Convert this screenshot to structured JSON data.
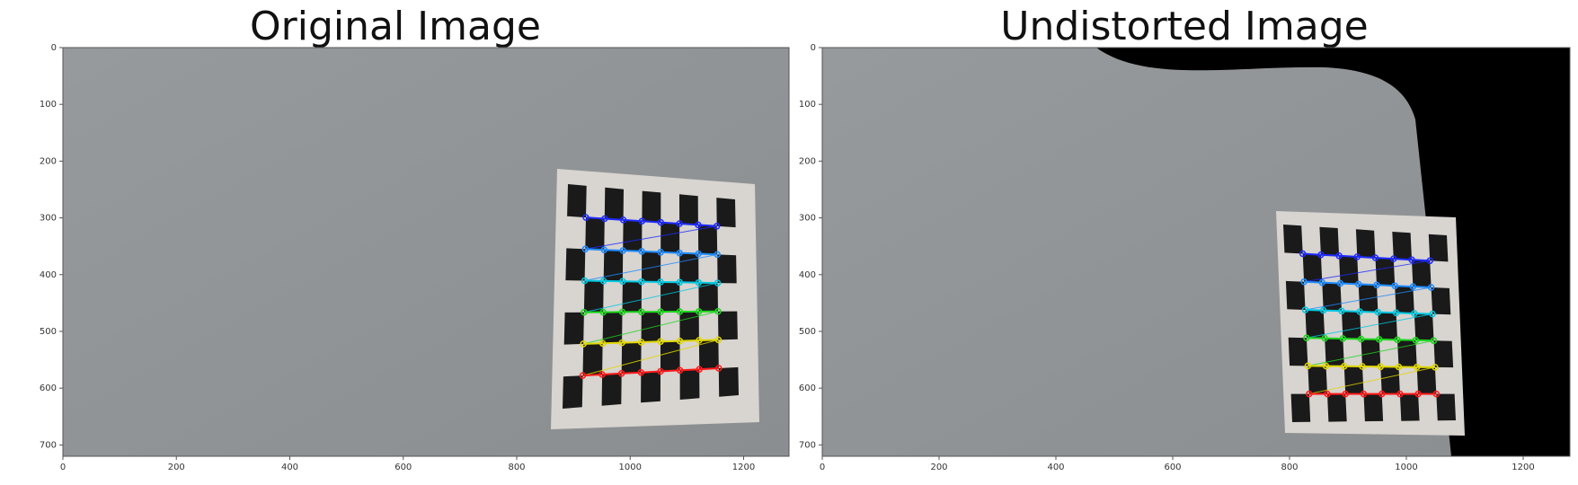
{
  "panels": [
    {
      "title": "Original Image",
      "image": "gray wall with a distorted checkerboard calibration pattern and colored corner markers",
      "xticks": [
        "0",
        "200",
        "400",
        "600",
        "800",
        "1000",
        "1200"
      ],
      "yticks": [
        "0",
        "100",
        "200",
        "300",
        "400",
        "500",
        "600",
        "700"
      ]
    },
    {
      "title": "Undistorted Image",
      "image": "undistorted gray wall with checkerboard and black warped border in upper right",
      "xticks": [
        "0",
        "200",
        "400",
        "600",
        "800",
        "1000",
        "1200"
      ],
      "yticks": [
        "0",
        "100",
        "200",
        "300",
        "400",
        "500",
        "600",
        "700"
      ]
    }
  ],
  "colors": {
    "wall": "#8f9395",
    "border": "#000000",
    "square": "#1a1a1a",
    "paper": "#d8d4d0",
    "rows": [
      "#1e2bff",
      "#1e8bff",
      "#00c8e0",
      "#1ed61e",
      "#e0d800",
      "#ff1a1a"
    ]
  }
}
